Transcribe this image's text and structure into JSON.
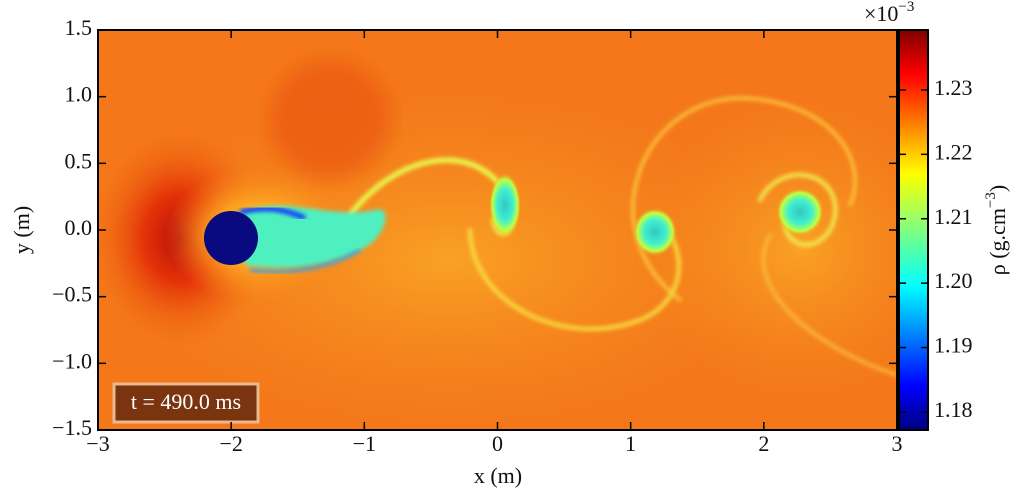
{
  "chart_data": {
    "type": "heatmap",
    "xlabel": "x  (m)",
    "ylabel": "y  (m)",
    "xlim": [
      -3,
      3
    ],
    "xticks": [
      {
        "value": -3,
        "label": "−3"
      },
      {
        "value": -2,
        "label": "−2"
      },
      {
        "value": -1,
        "label": "−1"
      },
      0,
      1,
      2,
      3
    ],
    "ylim": [
      -1.5,
      1.5
    ],
    "yticks": [
      {
        "value": -1.5,
        "label": "−1.5"
      },
      {
        "value": -1,
        "label": "−1.0"
      },
      {
        "value": -0.5,
        "label": "−0.5"
      },
      {
        "value": 0,
        "label": "0.0"
      },
      0.5,
      {
        "value": 1,
        "label": "1.0"
      },
      1.5
    ],
    "colorbar": {
      "label_main": "ρ (g.cm",
      "label_exponent": "−3",
      "label_close": ")",
      "multiplier": "×10",
      "multiplier_exponent": "−3",
      "lim": [
        1.1772,
        1.2393
      ],
      "ticks": [
        1.18,
        1.19,
        {
          "value": 1.2,
          "label": "1.20"
        },
        1.21,
        1.22,
        1.23
      ],
      "colormap": "jet"
    },
    "annotation": "t = 490.0 ms"
  }
}
